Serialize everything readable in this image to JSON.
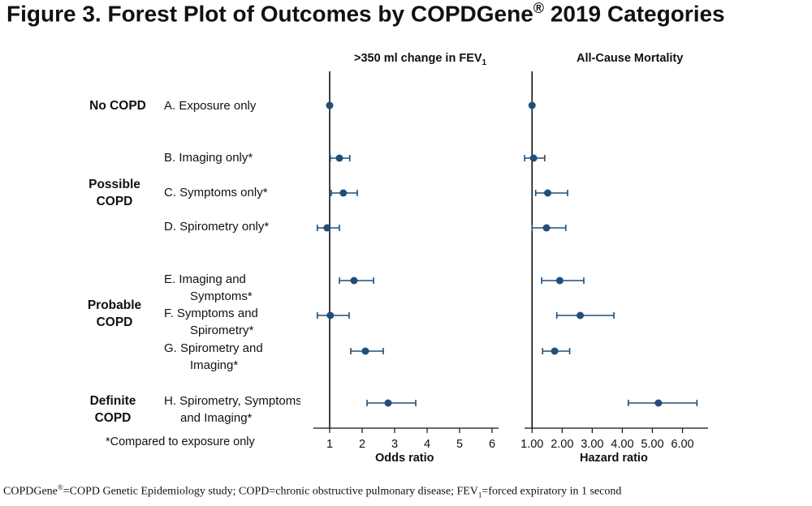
{
  "title": "Figure 3. Forest Plot of Outcomes by COPDGene® 2019 Categories",
  "title_main": "Figure 3. Forest Plot of Outcomes by COPDGene",
  "title_reg": "®",
  "title_tail": " 2019 Categories",
  "groups": [
    {
      "line1": "No COPD",
      "line2": ""
    },
    {
      "line1": "Possible",
      "line2": "COPD"
    },
    {
      "line1": "Probable",
      "line2": "COPD"
    },
    {
      "line1": "Definite",
      "line2": "COPD"
    }
  ],
  "rows": [
    {
      "line1": "A. Exposure only",
      "line2": ""
    },
    {
      "line1": "B. Imaging only*",
      "line2": ""
    },
    {
      "line1": "C. Symptoms only*",
      "line2": ""
    },
    {
      "line1": "D. Spirometry only*",
      "line2": ""
    },
    {
      "line1": "E. Imaging and",
      "line2": "Symptoms*"
    },
    {
      "line1": "F. Symptoms and",
      "line2": "Spirometry*"
    },
    {
      "line1": "G. Spirometry and",
      "line2": "Imaging*"
    },
    {
      "line1": "H. Spirometry, Symptoms",
      "line2": "and Imaging*"
    }
  ],
  "note": "*Compared to exposure only",
  "footnote": {
    "part1": "COPDGene",
    "reg": "®",
    "part2": "=COPD Genetic Epidemiology study; COPD=chronic obstructive pulmonary disease; FEV",
    "sub": "1",
    "part3": "=forced expiratory in 1 second"
  },
  "colors": {
    "marker": "#1f4e79",
    "text": "#111111",
    "axis": "#111111"
  },
  "chart_data": [
    {
      "type": "forest",
      "title": ">350 ml change in FEV1",
      "title_main": ">350 ml change in FEV",
      "title_sub": "1",
      "xlabel": "Odds ratio",
      "xlim": [
        0.5,
        6.2
      ],
      "xticks": [
        1,
        2,
        3,
        4,
        5,
        6
      ],
      "xtick_labels": [
        "1",
        "2",
        "3",
        "4",
        "5",
        "6"
      ],
      "reference": 1,
      "categories": [
        "A",
        "B",
        "C",
        "D",
        "E",
        "F",
        "G",
        "H"
      ],
      "estimates": [
        1.0,
        1.3,
        1.42,
        0.92,
        1.75,
        1.02,
        2.1,
        2.8
      ],
      "lower": [
        null,
        1.02,
        1.05,
        0.62,
        1.3,
        0.62,
        1.65,
        2.15
      ],
      "upper": [
        null,
        1.62,
        1.85,
        1.3,
        2.35,
        1.6,
        2.65,
        3.65
      ]
    },
    {
      "type": "forest",
      "title": "All-Cause Mortality",
      "xlabel": "Hazard ratio",
      "xlim": [
        0.75,
        6.85
      ],
      "xticks": [
        1,
        2,
        3,
        4,
        5,
        6
      ],
      "xtick_labels": [
        "1.00",
        "2.00",
        "3.00",
        "4.00",
        "5.00",
        "6.00"
      ],
      "reference": 1,
      "categories": [
        "A",
        "B",
        "C",
        "D",
        "E",
        "F",
        "G",
        "H"
      ],
      "estimates": [
        1.0,
        1.05,
        1.52,
        1.48,
        1.92,
        2.6,
        1.75,
        5.2
      ],
      "lower": [
        null,
        0.75,
        1.12,
        1.0,
        1.32,
        1.82,
        1.35,
        4.2
      ],
      "upper": [
        null,
        1.42,
        2.18,
        2.12,
        2.72,
        3.72,
        2.25,
        6.48
      ]
    }
  ]
}
